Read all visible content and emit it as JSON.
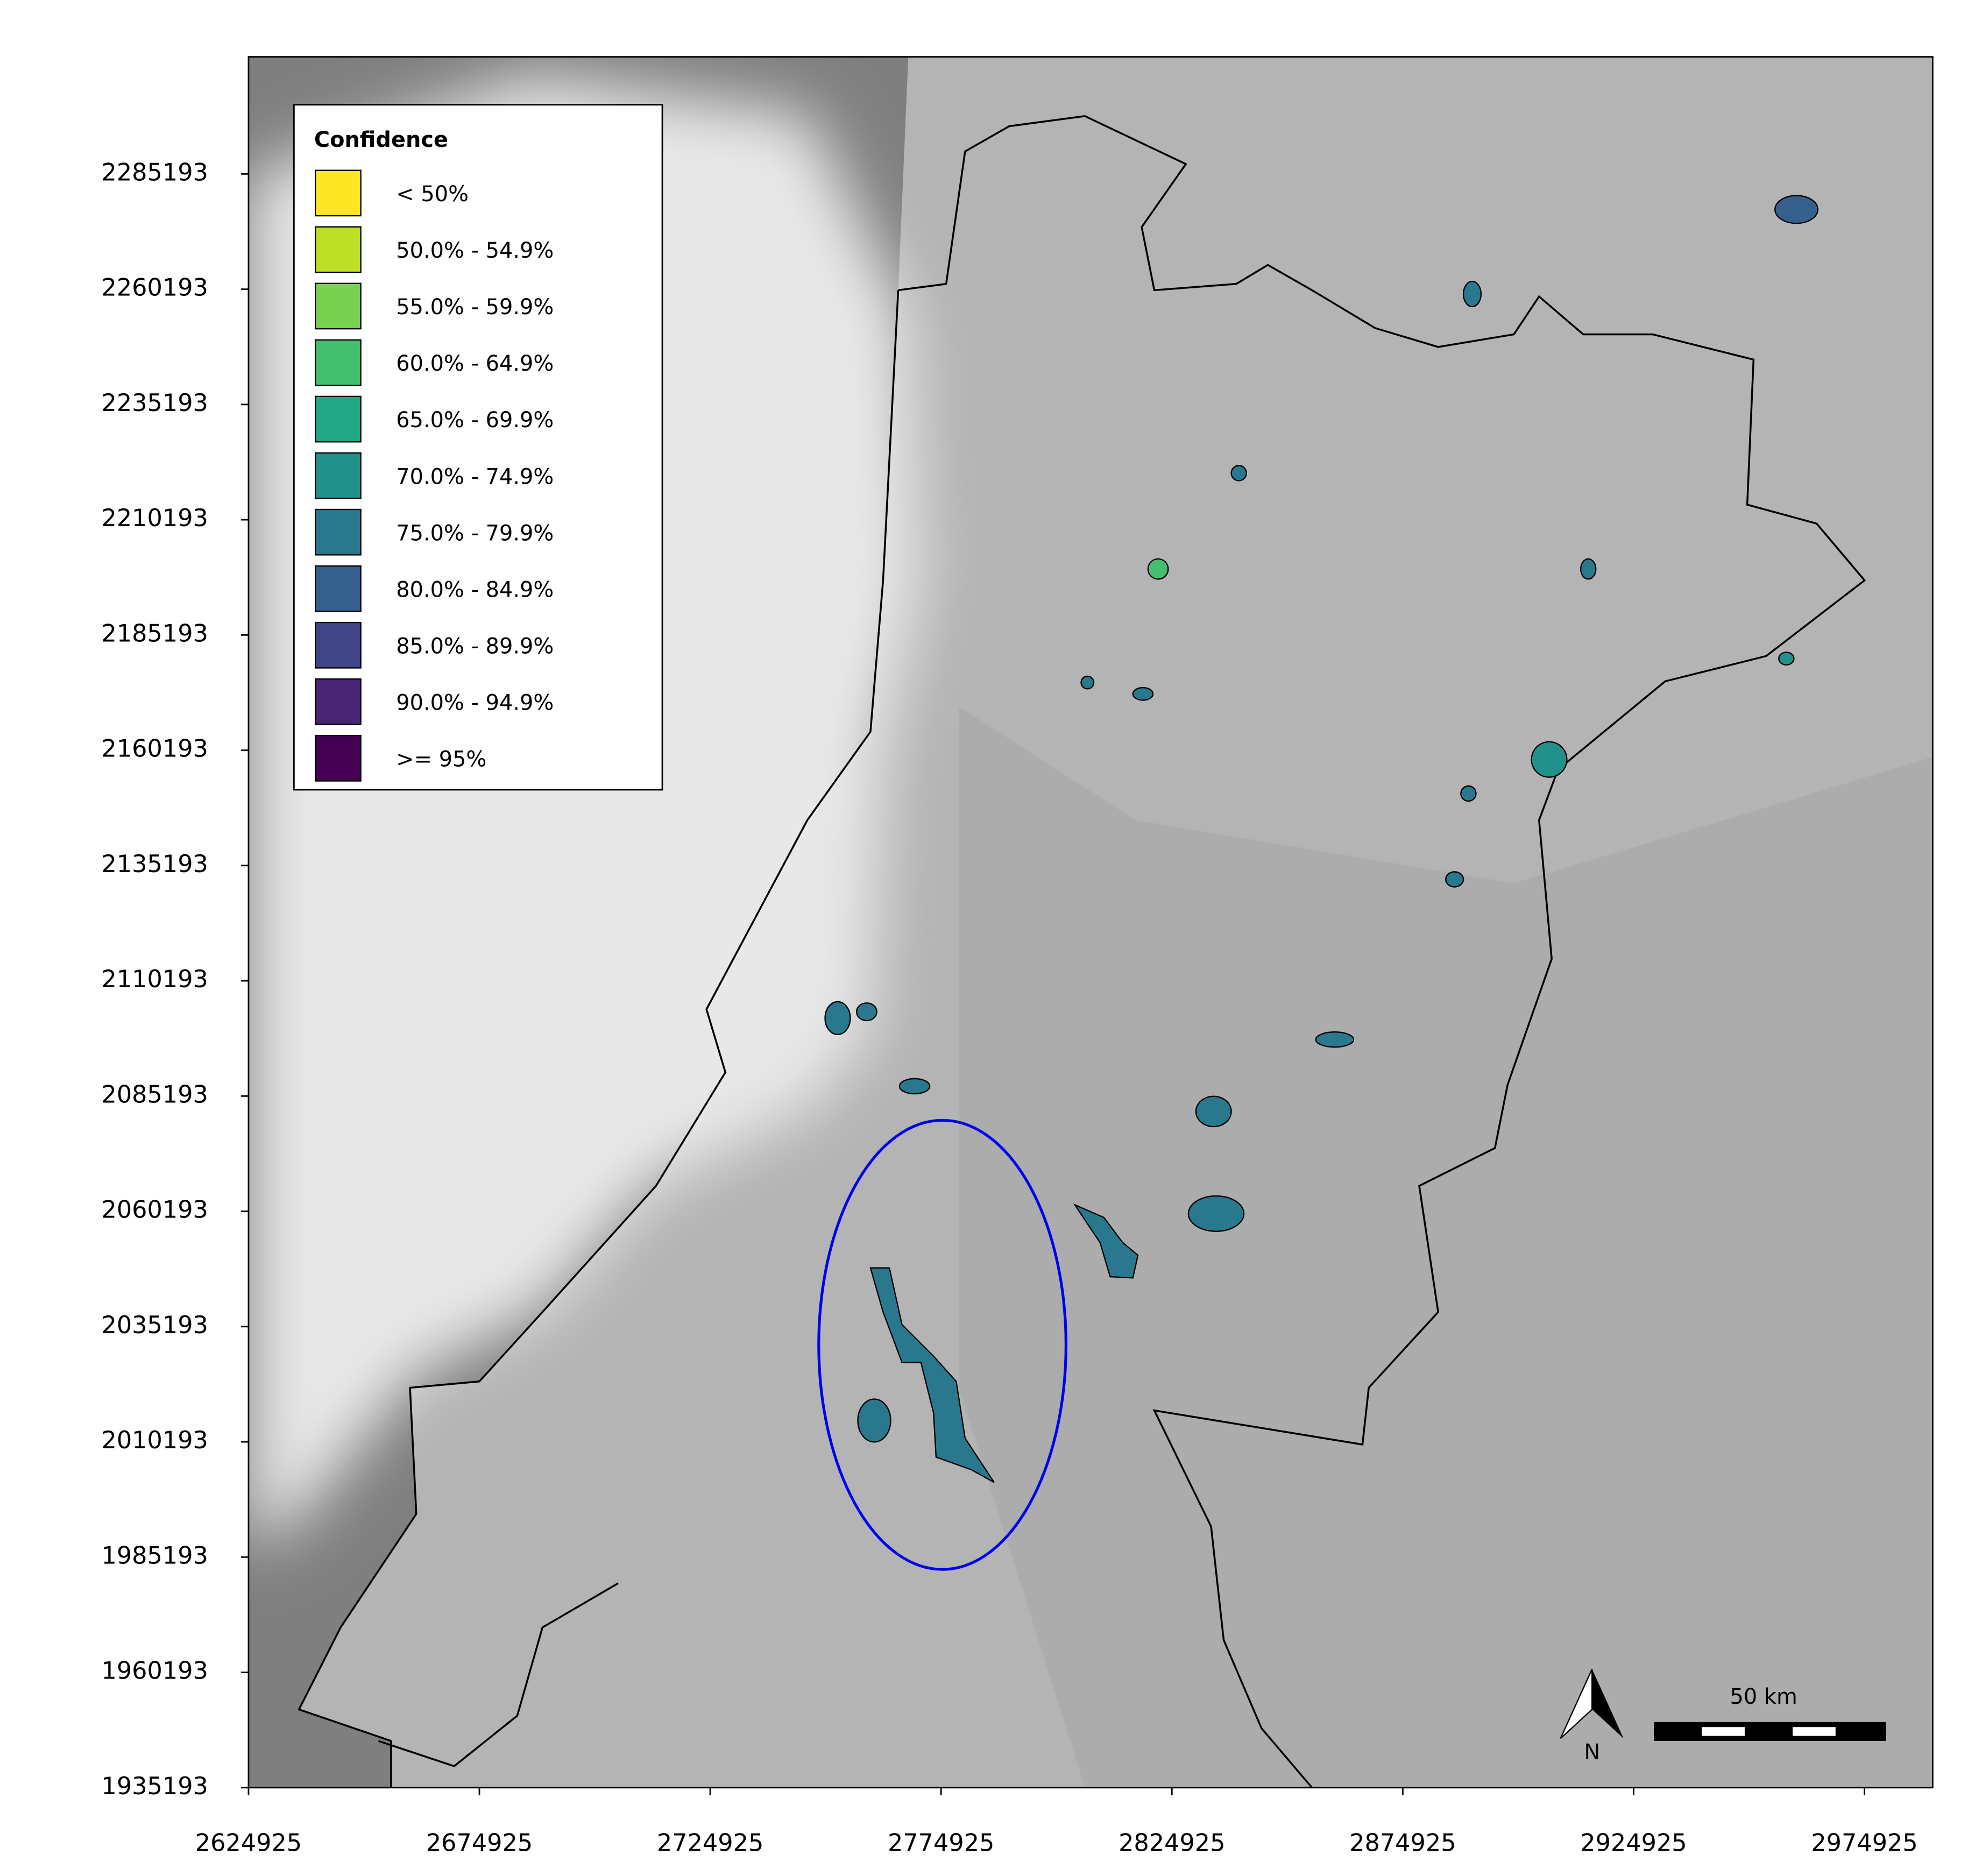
{
  "map": {
    "xlim": [
      2624925,
      2989700
    ],
    "ylim": [
      1935193,
      2310600
    ],
    "xticks": [
      2624925,
      2674925,
      2724925,
      2774925,
      2824925,
      2874925,
      2924925,
      2974925
    ],
    "yticks": [
      1935193,
      1960193,
      1985193,
      2010193,
      2035193,
      2060193,
      2085193,
      2110193,
      2135193,
      2160193,
      2185193,
      2210193,
      2235193,
      2260193,
      2285193
    ],
    "legend": {
      "title": "Confidence",
      "items": [
        {
          "label": "< 50%",
          "color": "#fde725"
        },
        {
          "label": "50.0% - 54.9%",
          "color": "#bddf26"
        },
        {
          "label": "55.0% - 59.9%",
          "color": "#7ad151"
        },
        {
          "label": "60.0% - 64.9%",
          "color": "#44bf70"
        },
        {
          "label": "65.0% - 69.9%",
          "color": "#22a884"
        },
        {
          "label": "70.0% - 74.9%",
          "color": "#21918c"
        },
        {
          "label": "75.0% - 79.9%",
          "color": "#2a788e"
        },
        {
          "label": "80.0% - 84.9%",
          "color": "#355f8d"
        },
        {
          "label": "85.0% - 89.9%",
          "color": "#414487"
        },
        {
          "label": "90.0% - 94.9%",
          "color": "#482475"
        },
        {
          "label": ">= 95%",
          "color": "#440154"
        }
      ]
    },
    "scale_bar": "50 km",
    "north": "N"
  }
}
